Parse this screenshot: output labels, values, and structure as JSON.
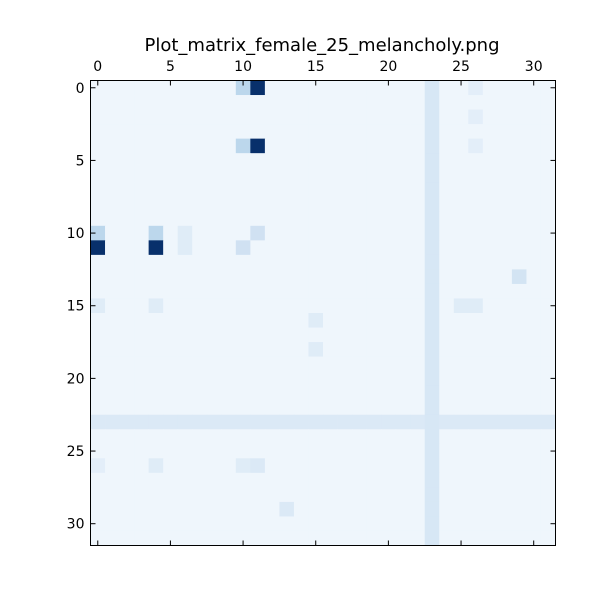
{
  "chart_data": {
    "type": "heatmap",
    "title": "Plot_matrix_female_25_melancholy.png",
    "xlabel": "",
    "ylabel": "",
    "rows": 32,
    "cols": 32,
    "x_ticks": [
      0,
      5,
      10,
      15,
      20,
      25,
      30
    ],
    "y_ticks": [
      0,
      5,
      10,
      15,
      20,
      25,
      30
    ],
    "x_tick_position": "top",
    "colormap": "Blues",
    "vmin": 0.0,
    "vmax": 1.0,
    "grid": false,
    "background_value": 0.04,
    "row_band": {
      "row": 23,
      "value": 0.14
    },
    "col_band": {
      "col": 23,
      "value": 0.16
    },
    "high_values": [
      {
        "row": 0,
        "col": 11,
        "value": 1.0
      },
      {
        "row": 4,
        "col": 11,
        "value": 1.0
      },
      {
        "row": 11,
        "col": 0,
        "value": 1.0
      },
      {
        "row": 11,
        "col": 4,
        "value": 1.0
      },
      {
        "row": 0,
        "col": 10,
        "value": 0.28
      },
      {
        "row": 4,
        "col": 10,
        "value": 0.28
      },
      {
        "row": 10,
        "col": 0,
        "value": 0.28
      },
      {
        "row": 10,
        "col": 4,
        "value": 0.28
      },
      {
        "row": 10,
        "col": 11,
        "value": 0.2
      },
      {
        "row": 11,
        "col": 10,
        "value": 0.2
      },
      {
        "row": 0,
        "col": 26,
        "value": 0.1
      },
      {
        "row": 2,
        "col": 26,
        "value": 0.1
      },
      {
        "row": 4,
        "col": 26,
        "value": 0.1
      },
      {
        "row": 10,
        "col": 6,
        "value": 0.12
      },
      {
        "row": 11,
        "col": 6,
        "value": 0.12
      },
      {
        "row": 13,
        "col": 29,
        "value": 0.18
      },
      {
        "row": 15,
        "col": 0,
        "value": 0.12
      },
      {
        "row": 15,
        "col": 4,
        "value": 0.12
      },
      {
        "row": 15,
        "col": 25,
        "value": 0.12
      },
      {
        "row": 15,
        "col": 26,
        "value": 0.12
      },
      {
        "row": 16,
        "col": 15,
        "value": 0.12
      },
      {
        "row": 18,
        "col": 15,
        "value": 0.12
      },
      {
        "row": 26,
        "col": 0,
        "value": 0.1
      },
      {
        "row": 26,
        "col": 4,
        "value": 0.12
      },
      {
        "row": 26,
        "col": 10,
        "value": 0.12
      },
      {
        "row": 26,
        "col": 11,
        "value": 0.14
      },
      {
        "row": 29,
        "col": 13,
        "value": 0.14
      }
    ]
  }
}
